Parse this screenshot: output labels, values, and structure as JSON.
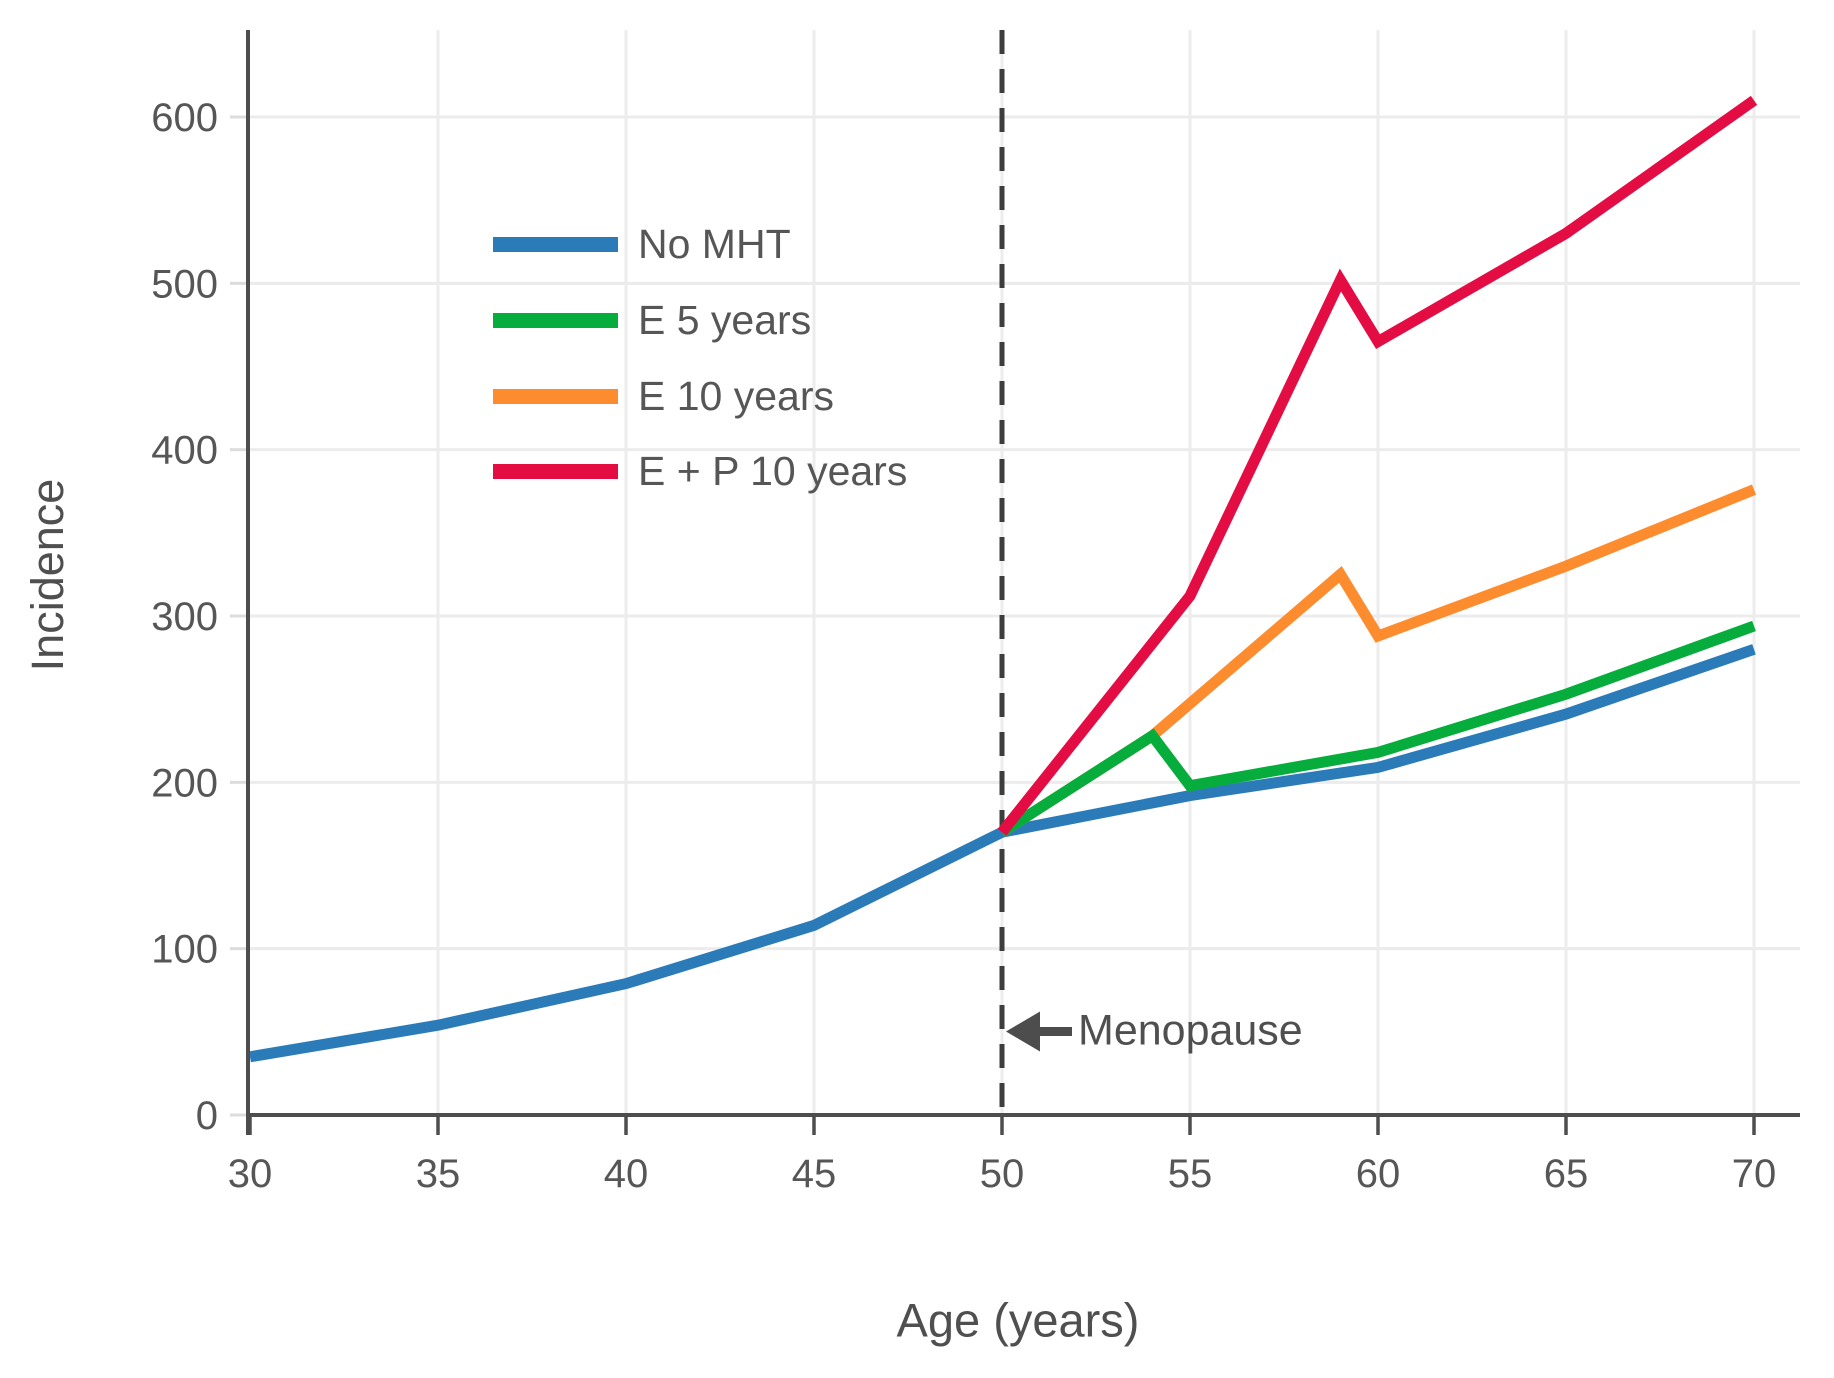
{
  "chart_data": {
    "type": "line",
    "title": "",
    "xlabel": "Age (years)",
    "ylabel": "Incidence",
    "x_ticks": [
      30,
      35,
      40,
      45,
      50,
      55,
      60,
      65,
      70
    ],
    "y_ticks": [
      0,
      100,
      200,
      300,
      400,
      500,
      600
    ],
    "xlim": [
      30,
      70
    ],
    "ylim": [
      0,
      650
    ],
    "grid": true,
    "legend_position": "upper left inside plot",
    "annotation": {
      "label": "Menopause",
      "x": 50,
      "arrow_direction": "left"
    },
    "menopause_line": {
      "x": 50,
      "style": "dashed",
      "color": "#3d3d3d"
    },
    "series": [
      {
        "name": "No MHT",
        "color": "#2b7bb9",
        "x": [
          30,
          35,
          40,
          45,
          50,
          55,
          60,
          65,
          70
        ],
        "y": [
          35,
          54,
          79,
          114,
          170,
          192,
          209,
          241,
          280
        ]
      },
      {
        "name": "E 5 years",
        "color": "#06ad3c",
        "x": [
          50,
          54,
          55,
          60,
          65,
          70
        ],
        "y": [
          170,
          228,
          198,
          218,
          253,
          294
        ]
      },
      {
        "name": "E 10 years",
        "color": "#fd8c2f",
        "x": [
          50,
          54,
          59,
          60,
          65,
          70
        ],
        "y": [
          170,
          228,
          325,
          288,
          330,
          376
        ]
      },
      {
        "name": "E + P 10 years",
        "color": "#e40d43",
        "x": [
          50,
          55,
          59,
          60,
          65,
          70
        ],
        "y": [
          170,
          312,
          502,
          465,
          530,
          610
        ]
      }
    ]
  },
  "colors": {
    "grid": "#ececec",
    "axis": "#4d4d4d",
    "tick_text": "#565656",
    "dashed_line": "#3d3d3d",
    "y_tick_mark": "#dcdcdc"
  }
}
